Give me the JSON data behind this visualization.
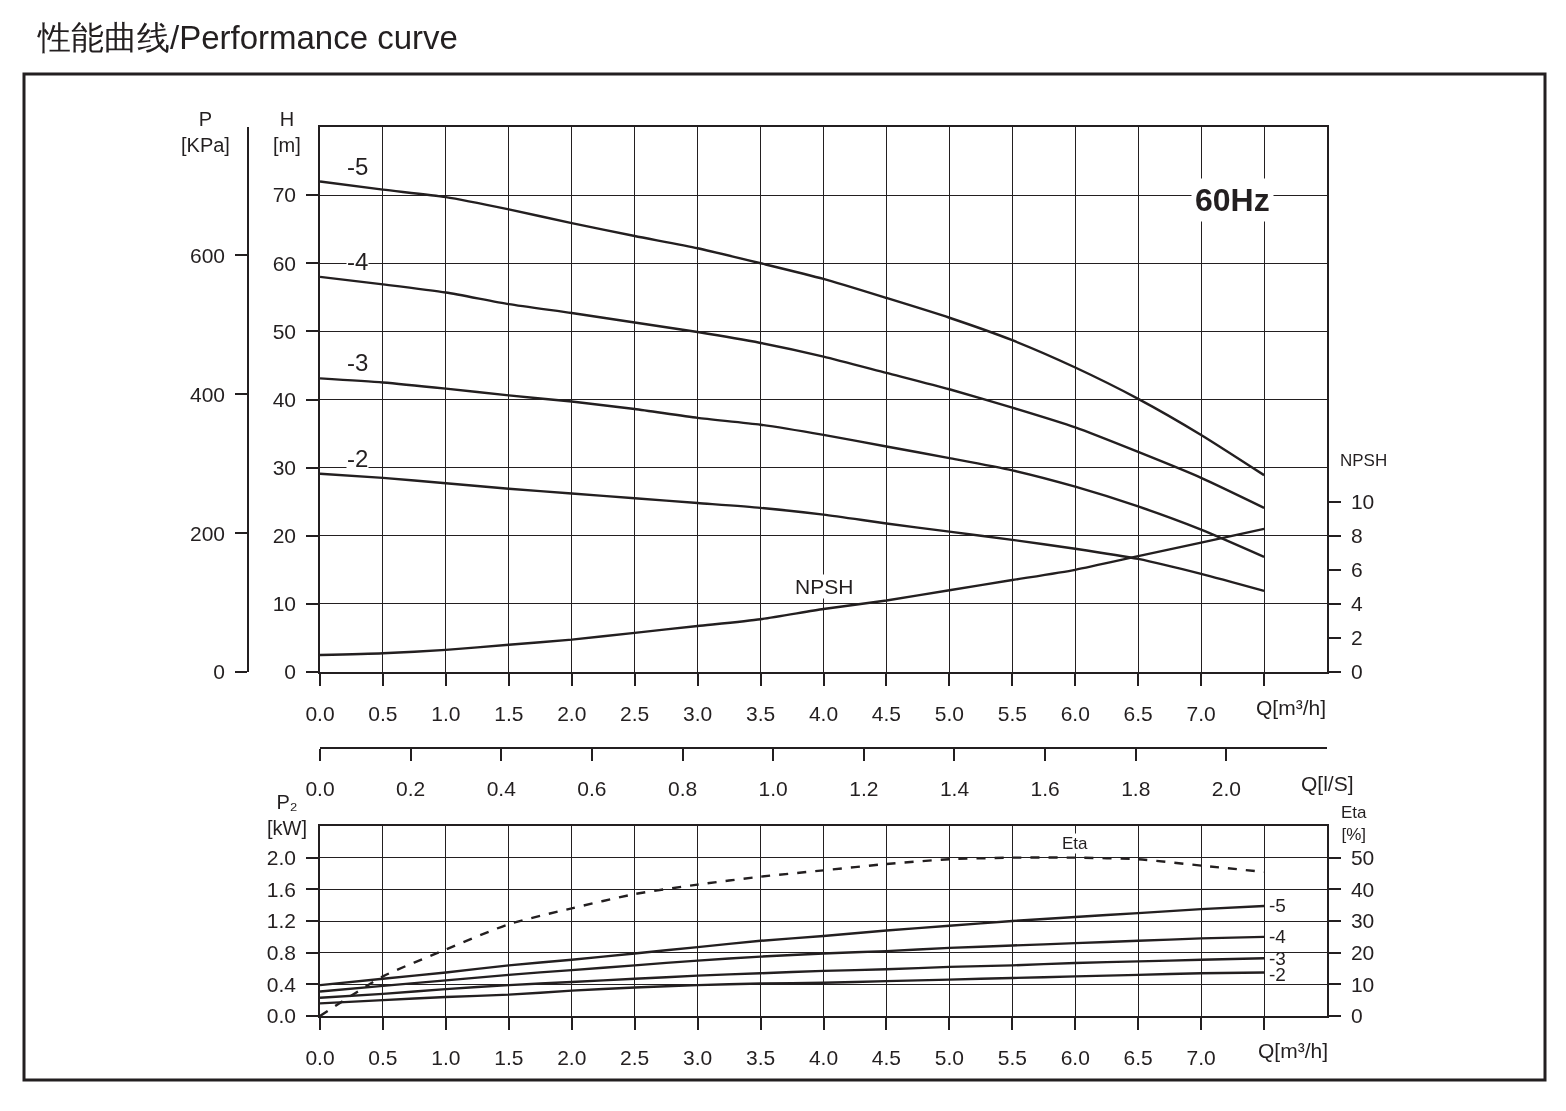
{
  "chart_data": [
    {
      "type": "line",
      "title": "性能曲线/Performance curve",
      "xlabel": "Q[m³/h]",
      "ylabel": "H\n[m]",
      "y2label": "P\n[KPa]",
      "y3label": "NPSH",
      "x2label": "Q[l/S]",
      "x": [
        0,
        0.5,
        1,
        1.5,
        2,
        2.5,
        3,
        3.5,
        4,
        4.5,
        5,
        5.5,
        6,
        6.5,
        7,
        7.5
      ],
      "series": [
        {
          "name": "-5",
          "color": "#231f20",
          "values": [
            72.0,
            70.8,
            69.7,
            67.9,
            65.9,
            64.0,
            62.2,
            60.0,
            57.7,
            54.9,
            52.0,
            48.7,
            44.7,
            40.1,
            34.8,
            28.9
          ]
        },
        {
          "name": "-4",
          "color": "#231f20",
          "values": [
            58.0,
            56.9,
            55.7,
            54.0,
            52.7,
            51.3,
            49.9,
            48.3,
            46.3,
            43.9,
            41.5,
            38.8,
            35.9,
            32.3,
            28.5,
            24.1
          ]
        },
        {
          "name": "-3",
          "color": "#231f20",
          "values": [
            43.1,
            42.5,
            41.6,
            40.6,
            39.7,
            38.6,
            37.3,
            36.3,
            34.8,
            33.1,
            31.4,
            29.6,
            27.2,
            24.3,
            20.9,
            16.9
          ]
        },
        {
          "name": "-2",
          "color": "#231f20",
          "values": [
            29.1,
            28.5,
            27.7,
            26.9,
            26.2,
            25.5,
            24.8,
            24.1,
            23.1,
            21.8,
            20.6,
            19.4,
            18.1,
            16.6,
            14.4,
            11.9
          ]
        },
        {
          "name": "NPSH",
          "color": "#231f20",
          "axis": "y3",
          "values": [
            1.0,
            1.1,
            1.3,
            1.6,
            1.9,
            2.3,
            2.7,
            3.1,
            3.7,
            4.2,
            4.8,
            5.4,
            6.0,
            6.8,
            7.6,
            8.4
          ]
        }
      ],
      "xlim": [
        0,
        8
      ],
      "xticks": [
        {
          "value": 0,
          "label": "0.0"
        },
        0.5,
        {
          "value": 1,
          "label": "1.0"
        },
        1.5,
        {
          "value": 2,
          "label": "2.0"
        },
        2.5,
        {
          "value": 3,
          "label": "3.0"
        },
        3.5,
        {
          "value": 4,
          "label": "4.0"
        },
        4.5,
        {
          "value": 5,
          "label": "5.0"
        },
        5.5,
        {
          "value": 6,
          "label": "6.0"
        },
        6.5,
        {
          "value": 7,
          "label": "7.0"
        },
        {
          "value": 7.5,
          "label": null
        }
      ],
      "ylim": [
        0,
        80
      ],
      "yticks": [
        0,
        10,
        20,
        30,
        40,
        50,
        60,
        70
      ],
      "y2lim": [
        0,
        785
      ],
      "y2ticks": [
        0,
        200,
        400,
        600
      ],
      "y3lim": [
        0,
        32
      ],
      "y3ticks": [
        0,
        2,
        4,
        6,
        8,
        10
      ],
      "x2lim": [
        0,
        2.222
      ],
      "x2ticks": [
        {
          "value": 0,
          "label": "0.0"
        },
        0.2,
        0.4,
        0.6,
        0.8,
        {
          "value": 1,
          "label": "1.0"
        },
        1.2,
        1.4,
        1.6,
        1.8,
        {
          "value": 2,
          "label": "2.0"
        }
      ],
      "grid": true,
      "legend": false,
      "marker": "none",
      "line_style": "solid",
      "annotations": [
        "60Hz"
      ]
    },
    {
      "type": "line",
      "xlabel": "Q[m³/h]",
      "ylabel": "P₂\n[kW]",
      "y2label": "Eta\n[%]",
      "x": [
        0,
        0.5,
        1,
        1.5,
        2,
        2.5,
        3,
        3.5,
        4,
        4.5,
        5,
        5.5,
        6,
        6.5,
        7,
        7.5
      ],
      "series": [
        {
          "name": "-5",
          "color": "#231f20",
          "values": [
            0.39,
            0.47,
            0.55,
            0.64,
            0.71,
            0.79,
            0.87,
            0.95,
            1.01,
            1.08,
            1.14,
            1.2,
            1.25,
            1.3,
            1.35,
            1.39
          ]
        },
        {
          "name": "-4",
          "color": "#231f20",
          "values": [
            0.31,
            0.38,
            0.45,
            0.52,
            0.58,
            0.64,
            0.7,
            0.75,
            0.79,
            0.82,
            0.86,
            0.89,
            0.92,
            0.95,
            0.98,
            1.0
          ]
        },
        {
          "name": "-3",
          "color": "#231f20",
          "values": [
            0.23,
            0.28,
            0.34,
            0.39,
            0.43,
            0.47,
            0.51,
            0.54,
            0.57,
            0.59,
            0.62,
            0.64,
            0.67,
            0.69,
            0.71,
            0.73
          ]
        },
        {
          "name": "-2",
          "color": "#231f20",
          "values": [
            0.16,
            0.2,
            0.24,
            0.27,
            0.32,
            0.36,
            0.39,
            0.41,
            0.42,
            0.44,
            0.46,
            0.48,
            0.5,
            0.52,
            0.54,
            0.55
          ]
        },
        {
          "name": "Eta",
          "color": "#231f20",
          "axis": "y2",
          "line_style": "dashed",
          "values": [
            0,
            12.5,
            21,
            29,
            34,
            38.5,
            41.5,
            44,
            46,
            48,
            49.5,
            50,
            50,
            49.5,
            47.5,
            45.5
          ]
        }
      ],
      "xlim": [
        0,
        8
      ],
      "xticks": [
        {
          "value": 0,
          "label": "0.0"
        },
        0.5,
        {
          "value": 1,
          "label": "1.0"
        },
        1.5,
        {
          "value": 2,
          "label": "2.0"
        },
        2.5,
        {
          "value": 3,
          "label": "3.0"
        },
        3.5,
        {
          "value": 4,
          "label": "4.0"
        },
        4.5,
        {
          "value": 5,
          "label": "5.0"
        },
        5.5,
        {
          "value": 6,
          "label": "6.0"
        },
        6.5,
        {
          "value": 7,
          "label": "7.0"
        },
        {
          "value": 7.5,
          "label": null
        }
      ],
      "ylim": [
        0,
        2.4
      ],
      "yticks": [
        {
          "value": 0,
          "label": "0.0"
        },
        0.4,
        0.8,
        1.2,
        1.6,
        {
          "value": 2,
          "label": "2.0"
        }
      ],
      "y2lim": [
        0,
        60
      ],
      "y2ticks": [
        0,
        10,
        20,
        30,
        40,
        50
      ],
      "grid": true,
      "legend": false,
      "marker": "none",
      "line_style": "solid"
    }
  ]
}
